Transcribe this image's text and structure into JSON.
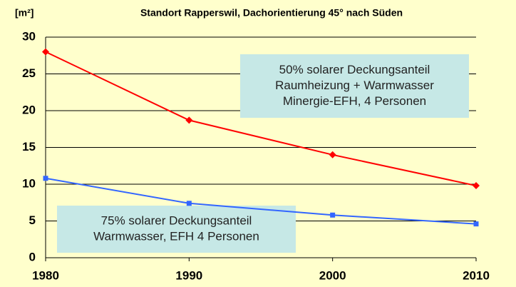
{
  "chart_data": {
    "type": "line",
    "title": "Standort Rapperswil, Dachorientierung 45° nach Süden",
    "y_label": "[m²]",
    "x": [
      1980,
      1990,
      2000,
      2010
    ],
    "xlim": [
      1980,
      2010
    ],
    "xticks": [
      1980,
      1990,
      2000,
      2010
    ],
    "ylim": [
      0,
      30
    ],
    "yticks": [
      0,
      5,
      10,
      15,
      20,
      25,
      30
    ],
    "grid": true,
    "series": [
      {
        "color": "#ff0000",
        "marker": "diamond",
        "values": [
          28,
          18.7,
          14,
          9.8
        ]
      },
      {
        "color": "#3366ff",
        "marker": "square",
        "values": [
          10.8,
          7.4,
          5.8,
          4.6
        ]
      }
    ],
    "annotations": [
      {
        "lines": [
          "50% solarer Deckungsanteil",
          "Raumheizung + Warmwasser",
          "Minergie-EFH, 4 Personen"
        ]
      },
      {
        "lines": [
          "75% solarer Deckungsanteil",
          "Warmwasser, EFH 4 Personen"
        ]
      }
    ]
  }
}
